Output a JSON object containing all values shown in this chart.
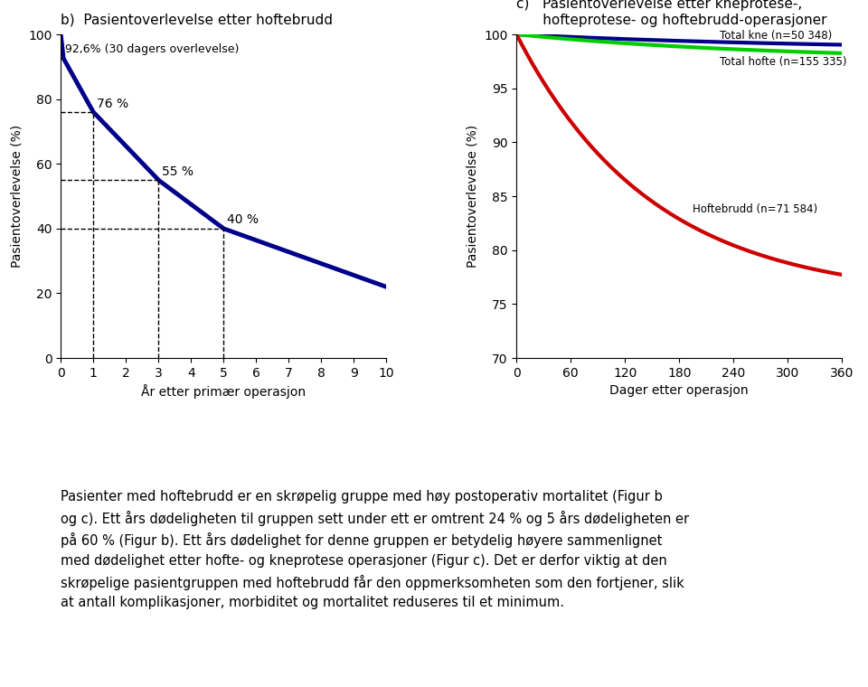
{
  "title_b": "b)  Pasientoverlevelse etter hoftebrudd",
  "title_c_line1": "c)   Pasientoverlevelse etter kneprotese-,",
  "title_c_line2": "      hofteprotese- og hoftebrudd-operasjoner",
  "ylabel_b": "Pasientoverlevelse (%)",
  "ylabel_c": "Pasientoverlevelse (%)",
  "xlabel_b": "År etter primær operasjon",
  "xlabel_c": "Dager etter operasjon",
  "annotation_30d": "92,6% (30 dagers overlevelse)",
  "annotation_1y": "76 %",
  "annotation_3y": "55 %",
  "annotation_5y": "40 %",
  "label_kne": "Total kne (n=50 348)",
  "label_hofte_protese": "Total hofte (n=155 335)",
  "label_hoftebrudd": "Hoftebrudd (n=71 584)",
  "curve_b_color": "#00008B",
  "curve_kne_color": "#00008B",
  "curve_hofte_protese_color": "#00CC00",
  "curve_hoftebrudd_color": "#CC0000",
  "background_color": "#ffffff",
  "text_paragraph": "Pasienter med hoftebrudd er en skrøpelig gruppe med høy postoperativ mortalitet (Figur b\nog c). Ett års dødeligheten til gruppen sett under ett er omtrent 24 % og 5 års dødeligheten er\npå 60 % (Figur b). Ett års dødelighet for denne gruppen er betydelig høyere sammenlignet\nmed dødelighet etter hofte- og kneprotese operasjoner (Figur c). Det er derfor viktig at den\nskrøpelige pasientgruppen med hoftebrudd får den oppmerksomheten som den fortjener, slik\nat antall komplikasjoner, morbiditet og mortalitet reduseres til et minimum."
}
